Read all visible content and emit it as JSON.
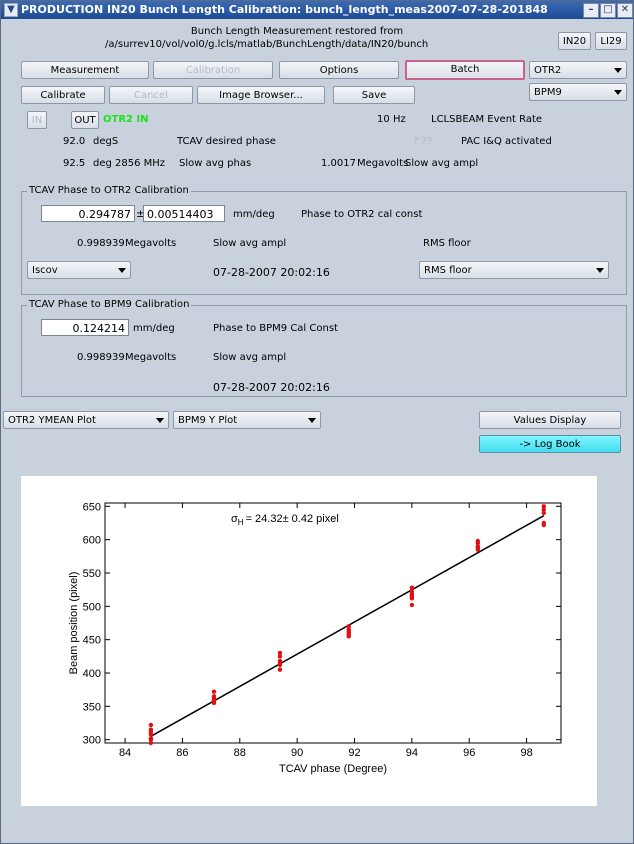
{
  "window": {
    "title": "PRODUCTION IN20 Bunch Length Calibration: bunch_length_meas2007-07-28-201848",
    "menu_icon": "chevron-down-icon"
  },
  "header": {
    "line1": "Bunch Length Measurement restored from",
    "line2": "/a/surrev10/vol/vol0/g.lcls/matlab/BunchLength/data/IN20/bunch",
    "btn_in20": "IN20",
    "btn_li29": "LI29"
  },
  "tabs": {
    "measurement": "Measurement",
    "calibration": "Calibration",
    "options": "Options",
    "batch": "Batch"
  },
  "selects": {
    "screen": "OTR2",
    "bpm": "BPM9",
    "iscov": "Iscov",
    "rms_floor": "RMS floor",
    "plot1": "OTR2 YMEAN Plot",
    "plot2": "BPM9 Y Plot"
  },
  "actions": {
    "calibrate": "Calibrate",
    "cancel": "Cancel",
    "image_browser": "Image Browser...",
    "save": "Save",
    "in": "IN",
    "out": "OUT",
    "otr2_in": "OTR2 IN",
    "values_display": "Values Display",
    "log_book": "-> Log Book"
  },
  "status": {
    "rate_value": "10",
    "rate_unit": "Hz",
    "rate_label": "LCLSBEAM Event Rate",
    "phase_value": "92.0",
    "phase_unit": "degS",
    "phase_label": "TCAV desired phase",
    "pac_qmark": "? ??",
    "pac_label": "PAC I&Q activated",
    "slow_phase_value": "92.5",
    "slow_phase_unit": "deg 2856 MHz",
    "slow_phase_label": "Slow avg phas",
    "ampl_value": "1.0017",
    "ampl_unit": "Megavolts",
    "ampl_label": "Slow avg ampl"
  },
  "otr2_cal": {
    "title": "TCAV Phase to OTR2 Calibration",
    "const_value": "0.294787",
    "pm": "±",
    "const_err": "0.00514403",
    "unit": "mm/deg",
    "const_label": "Phase to OTR2 cal const",
    "ampl_value": "0.998939",
    "ampl_unit": "Megavolts",
    "ampl_label": "Slow avg ampl",
    "rms_label": "RMS floor",
    "timestamp": "07-28-2007 20:02:16"
  },
  "bpm9_cal": {
    "title": "TCAV Phase to BPM9 Calibration",
    "const_value": "0.124214",
    "unit": "mm/deg",
    "const_label": "Phase to BPM9 Cal Const",
    "ampl_value": "0.998939",
    "ampl_unit": "Megavolts",
    "ampl_label": "Slow avg ampl",
    "timestamp": "07-28-2007 20:02:16"
  },
  "chart_data": {
    "type": "scatter",
    "title": "",
    "annotation_sigma": "σ",
    "annotation_sub": "H",
    "annotation_text": "= 24.32± 0.42 pixel",
    "xlabel": "TCAV phase  (Degree)",
    "ylabel": "Beam position  (pixel)",
    "xlim": [
      83.3,
      99.2
    ],
    "ylim": [
      295,
      655
    ],
    "xticks": [
      84,
      86,
      88,
      90,
      92,
      94,
      96,
      98
    ],
    "yticks": [
      300,
      350,
      400,
      450,
      500,
      550,
      600,
      650
    ],
    "point_color": "#e01010",
    "line_color": "#000000",
    "fit_line": {
      "x": [
        84.9,
        98.6
      ],
      "y": [
        305,
        636
      ]
    },
    "series": [
      {
        "x": [
          84.9,
          84.9,
          84.9,
          84.9,
          84.9,
          84.9,
          84.9,
          87.1,
          87.1,
          87.1,
          87.1,
          87.1,
          87.1,
          89.4,
          89.4,
          89.4,
          89.4,
          89.4,
          89.4,
          91.8,
          91.8,
          91.8,
          91.8,
          91.8,
          91.8,
          94.0,
          94.0,
          94.0,
          94.0,
          94.0,
          94.0,
          96.3,
          96.3,
          96.3,
          96.3,
          96.3,
          98.6,
          98.6,
          98.6,
          98.6,
          98.6
        ],
        "y": [
          295,
          302,
          308,
          315,
          322,
          300,
          312,
          355,
          360,
          365,
          372,
          358,
          362,
          405,
          412,
          418,
          425,
          430,
          415,
          455,
          460,
          465,
          470,
          458,
          462,
          502,
          512,
          518,
          522,
          528,
          515,
          585,
          590,
          595,
          598,
          588,
          622,
          640,
          645,
          650,
          625
        ]
      }
    ]
  }
}
